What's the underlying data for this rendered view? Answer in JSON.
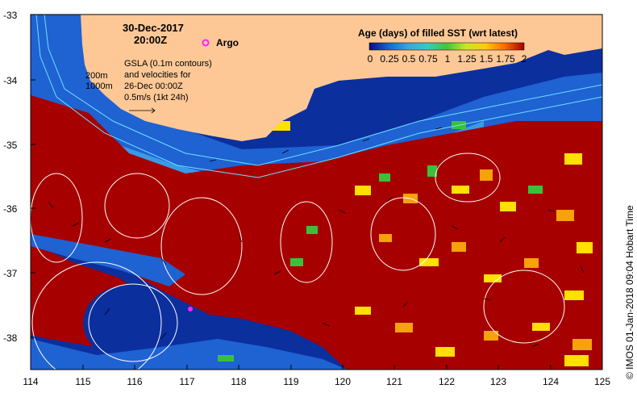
{
  "header": {
    "date_line": "30-Dec-2017",
    "time_line": "20:00Z"
  },
  "argo_label": "Argo",
  "gsla_lines": [
    "GSLA (0.1m contours)",
    "and velocities for",
    "26-Dec 00:00Z",
    "0.5m/s (1kt 24h)"
  ],
  "contour_labels": {
    "shallow": "200m",
    "deep": "1000m"
  },
  "colorbar": {
    "title": "Age (days) of filled SST (wrt latest)",
    "tick_labels": [
      "0",
      "0.25",
      "0.5",
      "0.75",
      "1",
      "1.25",
      "1.5",
      "1.75",
      "2"
    ],
    "range": [
      0,
      2
    ],
    "colors": [
      "#0a0a8c",
      "#1565d8",
      "#35a5e8",
      "#2bd0c0",
      "#3cc83c",
      "#c8e628",
      "#ffc814",
      "#ff6a00",
      "#a00000"
    ]
  },
  "axes": {
    "x_ticks": [
      "114",
      "115",
      "116",
      "117",
      "118",
      "119",
      "120",
      "121",
      "122",
      "123",
      "124",
      "125"
    ],
    "y_ticks": [
      "-33",
      "-34",
      "-35",
      "-36",
      "-37",
      "-38"
    ],
    "x_range": [
      114,
      125
    ],
    "y_range": [
      -38.5,
      -33
    ]
  },
  "credit": "© IMOS 01-Jan-2018 09:04 Hobart Time",
  "colors": {
    "land": "#fdc896",
    "deep_blue": "#0c2f9e",
    "mid_blue": "#1f62d2",
    "light_blue": "#3a9ae6",
    "dark_red": "#a60000",
    "orange": "#f6a20a",
    "yellow": "#ffe000",
    "green": "#3cc03c",
    "argo": "#ff22ff"
  }
}
